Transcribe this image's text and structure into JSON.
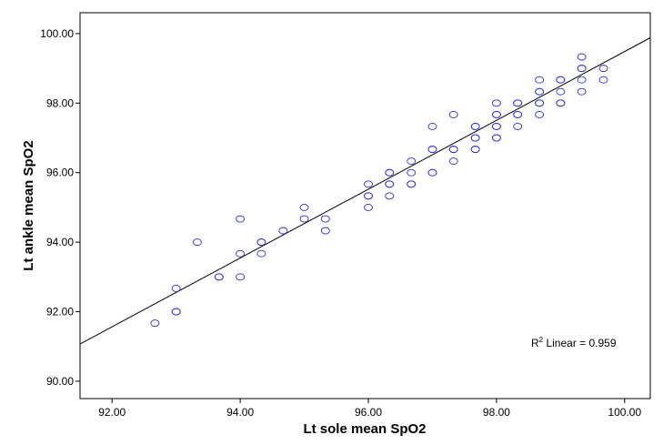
{
  "chart_data": {
    "type": "scatter",
    "xlabel": "Lt sole mean SpO2",
    "ylabel": "Lt ankle mean SpO2",
    "xlim": [
      91.5,
      100.4
    ],
    "ylim": [
      89.5,
      100.6
    ],
    "x_ticks": [
      "92.00",
      "94.00",
      "96.00",
      "98.00",
      "100.00"
    ],
    "y_ticks": [
      "90.00",
      "92.00",
      "94.00",
      "96.00",
      "98.00",
      "100.00"
    ],
    "x_tick_values": [
      92,
      94,
      96,
      98,
      100
    ],
    "y_tick_values": [
      90,
      92,
      94,
      96,
      98,
      100
    ],
    "marker_color": "#3333cc",
    "line_color": "#000000",
    "grid": false,
    "annotation": {
      "prefix": "R",
      "sup": "2",
      "suffix": " Linear = 0.959"
    },
    "fit_line": {
      "x": [
        91.5,
        100.4
      ],
      "y": [
        91.07,
        99.88
      ]
    },
    "points": {
      "x": [
        92.67,
        93.0,
        93.0,
        93.0,
        93.33,
        93.67,
        93.67,
        94.0,
        94.0,
        94.0,
        94.33,
        94.33,
        94.33,
        94.67,
        95.0,
        95.0,
        95.33,
        95.33,
        96.0,
        96.0,
        96.0,
        96.0,
        96.33,
        96.33,
        96.33,
        96.33,
        96.33,
        96.67,
        96.67,
        96.67,
        96.67,
        97.0,
        97.0,
        97.0,
        97.0,
        97.0,
        97.33,
        97.33,
        97.33,
        97.33,
        97.67,
        97.67,
        97.67,
        97.67,
        97.67,
        97.67,
        98.0,
        98.0,
        98.0,
        98.0,
        98.0,
        98.0,
        98.0,
        98.33,
        98.33,
        98.33,
        98.33,
        98.33,
        98.67,
        98.67,
        98.67,
        98.67,
        98.67,
        98.67,
        99.0,
        99.0,
        99.0,
        99.0,
        99.0,
        99.33,
        99.33,
        99.33,
        99.33,
        99.33,
        99.67,
        99.67
      ],
      "y": [
        91.67,
        92.67,
        92.0,
        92.0,
        94.0,
        93.0,
        93.0,
        94.67,
        93.67,
        93.0,
        94.0,
        94.0,
        93.67,
        94.33,
        95.0,
        94.67,
        94.67,
        94.33,
        95.67,
        95.33,
        95.33,
        95.0,
        96.0,
        96.0,
        95.67,
        95.67,
        95.33,
        96.33,
        96.0,
        95.67,
        95.67,
        97.33,
        96.67,
        96.67,
        96.0,
        96.0,
        97.67,
        96.67,
        96.67,
        96.33,
        97.33,
        97.33,
        97.0,
        97.0,
        96.67,
        96.67,
        98.0,
        97.67,
        97.67,
        97.33,
        97.33,
        97.0,
        97.0,
        98.0,
        98.0,
        97.67,
        97.67,
        97.33,
        98.67,
        98.33,
        98.33,
        98.0,
        98.0,
        97.67,
        98.67,
        98.67,
        98.33,
        98.0,
        98.0,
        99.33,
        99.0,
        99.0,
        98.67,
        98.33,
        99.0,
        98.67
      ]
    }
  }
}
